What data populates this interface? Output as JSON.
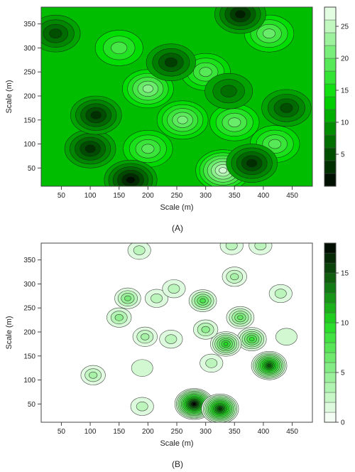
{
  "chart_data": [
    {
      "type": "heatmap",
      "subtitle": "(A)",
      "xlabel": "Scale (m)",
      "ylabel": "Scale (m)",
      "xlim": [
        15,
        485
      ],
      "ylim": [
        12,
        385
      ],
      "xticks": [
        50,
        100,
        150,
        200,
        250,
        300,
        350,
        400,
        450
      ],
      "yticks": [
        50,
        100,
        150,
        200,
        250,
        300,
        350
      ],
      "colorbar": {
        "min": 0,
        "max": 28,
        "ticks": [
          5,
          10,
          15,
          20,
          25
        ],
        "levels": 14
      },
      "hotspots": [
        {
          "x": 330,
          "y": 45,
          "value": 26
        },
        {
          "x": 200,
          "y": 215,
          "value": 22
        },
        {
          "x": 350,
          "y": 145,
          "value": 20
        },
        {
          "x": 260,
          "y": 150,
          "value": 21
        },
        {
          "x": 200,
          "y": 90,
          "value": 19
        },
        {
          "x": 410,
          "y": 330,
          "value": 20
        },
        {
          "x": 150,
          "y": 300,
          "value": 18
        },
        {
          "x": 300,
          "y": 250,
          "value": 19
        },
        {
          "x": 420,
          "y": 100,
          "value": 19
        },
        {
          "x": 170,
          "y": 25,
          "value": 1
        },
        {
          "x": 360,
          "y": 370,
          "value": 2
        },
        {
          "x": 100,
          "y": 90,
          "value": 3
        },
        {
          "x": 240,
          "y": 270,
          "value": 4
        },
        {
          "x": 110,
          "y": 160,
          "value": 3
        },
        {
          "x": 380,
          "y": 60,
          "value": 3
        },
        {
          "x": 440,
          "y": 175,
          "value": 5
        },
        {
          "x": 40,
          "y": 330,
          "value": 5
        },
        {
          "x": 340,
          "y": 210,
          "value": 7
        }
      ]
    },
    {
      "type": "heatmap",
      "subtitle": "(B)",
      "xlabel": "Scale (m)",
      "ylabel": "Scale (m)",
      "xlim": [
        15,
        485
      ],
      "ylim": [
        12,
        385
      ],
      "xticks": [
        50,
        100,
        150,
        200,
        250,
        300,
        350,
        400,
        450
      ],
      "yticks": [
        50,
        100,
        150,
        200,
        250,
        300,
        350
      ],
      "colorbar": {
        "min": 0,
        "max": 18,
        "ticks": [
          0,
          5,
          10,
          15
        ],
        "levels": 18
      },
      "hotspots": [
        {
          "x": 280,
          "y": 50,
          "value": 18
        },
        {
          "x": 325,
          "y": 40,
          "value": 16
        },
        {
          "x": 410,
          "y": 130,
          "value": 15
        },
        {
          "x": 380,
          "y": 185,
          "value": 9
        },
        {
          "x": 335,
          "y": 175,
          "value": 10
        },
        {
          "x": 360,
          "y": 230,
          "value": 7
        },
        {
          "x": 295,
          "y": 265,
          "value": 8
        },
        {
          "x": 300,
          "y": 205,
          "value": 5
        },
        {
          "x": 165,
          "y": 270,
          "value": 6
        },
        {
          "x": 150,
          "y": 230,
          "value": 5
        },
        {
          "x": 195,
          "y": 190,
          "value": 4
        },
        {
          "x": 105,
          "y": 110,
          "value": 4
        },
        {
          "x": 190,
          "y": 45,
          "value": 3
        },
        {
          "x": 350,
          "y": 315,
          "value": 4
        },
        {
          "x": 215,
          "y": 270,
          "value": 3
        },
        {
          "x": 245,
          "y": 290,
          "value": 3
        },
        {
          "x": 240,
          "y": 185,
          "value": 3
        },
        {
          "x": 185,
          "y": 370,
          "value": 3
        },
        {
          "x": 345,
          "y": 380,
          "value": 3
        },
        {
          "x": 395,
          "y": 380,
          "value": 3
        },
        {
          "x": 430,
          "y": 280,
          "value": 3
        },
        {
          "x": 310,
          "y": 135,
          "value": 3
        },
        {
          "x": 190,
          "y": 125,
          "value": 2
        },
        {
          "x": 440,
          "y": 190,
          "value": 2
        }
      ]
    }
  ]
}
